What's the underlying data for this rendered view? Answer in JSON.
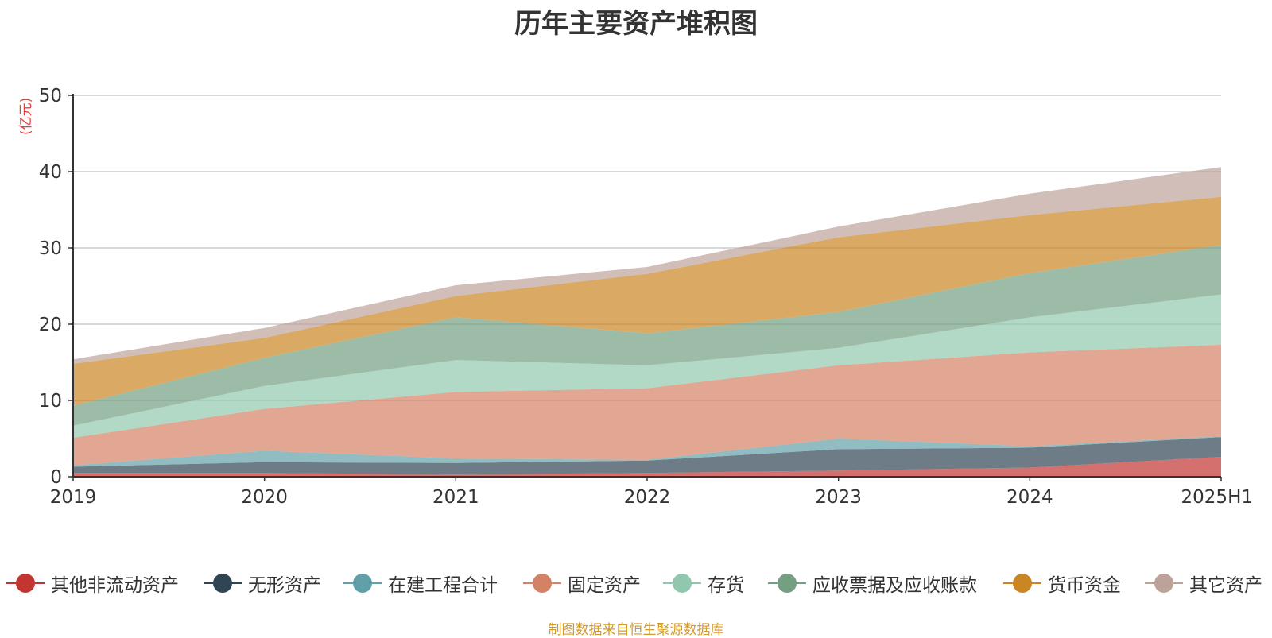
{
  "title": "历年主要资产堆积图",
  "source_note": "制图数据来自恒生聚源数据库",
  "chart_data": {
    "type": "area",
    "stacked": true,
    "title": "历年主要资产堆积图",
    "y_unit": "(亿元)",
    "categories": [
      "2019",
      "2020",
      "2021",
      "2022",
      "2023",
      "2024",
      "2025H1"
    ],
    "ylim": [
      0,
      50
    ],
    "yticks": [
      0,
      10,
      20,
      30,
      40,
      50
    ],
    "grid": true,
    "legend_position": "bottom",
    "series": [
      {
        "name": "其他非流动资产",
        "color": "#c23531",
        "values": [
          0.5,
          0.5,
          0.3,
          0.5,
          0.8,
          1.2,
          2.6
        ]
      },
      {
        "name": "无形资产",
        "color": "#2f4554",
        "values": [
          0.8,
          1.4,
          1.5,
          1.6,
          2.8,
          2.6,
          2.6
        ]
      },
      {
        "name": "在建工程合计",
        "color": "#61a0a8",
        "values": [
          0.2,
          1.5,
          0.6,
          0.1,
          1.4,
          0.2,
          0.1
        ]
      },
      {
        "name": "固定资产",
        "color": "#d48265",
        "values": [
          3.6,
          5.5,
          8.7,
          9.4,
          9.6,
          12.3,
          12.0
        ]
      },
      {
        "name": "存货",
        "color": "#91c7ae",
        "values": [
          1.6,
          3.0,
          4.2,
          3.0,
          2.3,
          4.6,
          6.6
        ]
      },
      {
        "name": "应收票据及应收账款",
        "color": "#749f83",
        "values": [
          2.6,
          3.7,
          5.6,
          4.2,
          4.7,
          5.8,
          6.5
        ]
      },
      {
        "name": "货币资金",
        "color": "#ca8622",
        "values": [
          5.5,
          2.6,
          2.8,
          7.8,
          9.8,
          7.6,
          6.3
        ]
      },
      {
        "name": "其它资产",
        "color": "#bda29a",
        "values": [
          0.6,
          1.3,
          1.4,
          0.9,
          1.4,
          2.8,
          3.9
        ]
      }
    ]
  }
}
